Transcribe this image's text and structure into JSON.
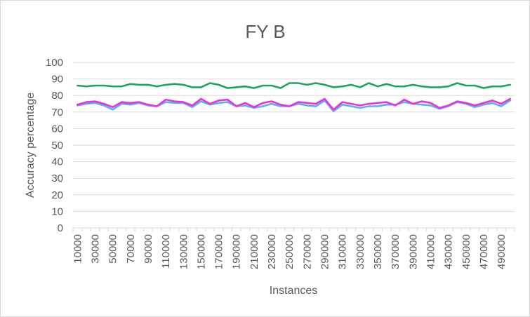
{
  "chart_data": {
    "type": "line",
    "title": "FY B",
    "xlabel": "Instances",
    "ylabel": "Accuracy percentage",
    "ylim": [
      0,
      100
    ],
    "y_ticks": [
      0,
      10,
      20,
      30,
      40,
      50,
      60,
      70,
      80,
      90,
      100
    ],
    "grid": "horizontal",
    "legend": "none",
    "x": [
      10000,
      20000,
      30000,
      40000,
      50000,
      60000,
      70000,
      80000,
      90000,
      100000,
      110000,
      120000,
      130000,
      140000,
      150000,
      160000,
      170000,
      180000,
      190000,
      200000,
      210000,
      220000,
      230000,
      240000,
      250000,
      260000,
      270000,
      280000,
      290000,
      300000,
      310000,
      320000,
      330000,
      340000,
      350000,
      360000,
      370000,
      380000,
      390000,
      400000,
      410000,
      420000,
      430000,
      440000,
      450000,
      460000,
      470000,
      480000,
      490000,
      500000
    ],
    "x_tick_labels": [
      "10000",
      "30000",
      "50000",
      "70000",
      "90000",
      "110000",
      "130000",
      "150000",
      "170000",
      "190000",
      "210000",
      "230000",
      "250000",
      "270000",
      "290000",
      "310000",
      "330000",
      "350000",
      "370000",
      "390000",
      "410000",
      "430000",
      "450000",
      "470000",
      "490000"
    ],
    "series": [
      {
        "color": "#1fa55a",
        "values": [
          86,
          85.5,
          86,
          86,
          85.5,
          85.5,
          87,
          86.5,
          86.5,
          85.5,
          86.5,
          87,
          86.5,
          85,
          85,
          87.5,
          86.5,
          84.5,
          85,
          85.5,
          84.5,
          86,
          86,
          84.5,
          87.5,
          87.5,
          86.5,
          87.5,
          86.5,
          85,
          85.5,
          86.5,
          85,
          87.5,
          85.5,
          87,
          85.5,
          85.5,
          86.5,
          85.5,
          85,
          85,
          85.5,
          87.5,
          86,
          86,
          84.5,
          85.5,
          85.5,
          86.5
        ]
      },
      {
        "color": "#5ab4d6",
        "values": [
          74,
          75,
          75.5,
          74,
          71.5,
          75,
          74.5,
          75.5,
          74,
          73.5,
          76,
          75.5,
          75.5,
          73,
          76.5,
          74.5,
          75.5,
          76,
          73.5,
          74,
          72.5,
          73.5,
          75,
          73.5,
          73.5,
          75,
          74,
          73.5,
          77,
          70.5,
          74.5,
          73.5,
          72.5,
          73.5,
          73.5,
          74.5,
          74.5,
          76,
          75,
          74.5,
          74,
          72,
          73.5,
          76,
          75,
          73,
          74.5,
          75.5,
          73.5,
          77
        ]
      },
      {
        "color": "#e830e8",
        "values": [
          74.5,
          76,
          76.5,
          75,
          73,
          76,
          75.5,
          76,
          74.5,
          73.5,
          77.5,
          76.5,
          76,
          74,
          78,
          75,
          77,
          77.5,
          73.5,
          75.5,
          73,
          75.5,
          76.5,
          74.5,
          73.5,
          76,
          75.5,
          75,
          78,
          71.5,
          76,
          75,
          74,
          75,
          75.5,
          76,
          74,
          77.5,
          75,
          76.5,
          75.5,
          72.5,
          74,
          76.5,
          75.5,
          74,
          75.5,
          77,
          75,
          78
        ]
      }
    ]
  }
}
